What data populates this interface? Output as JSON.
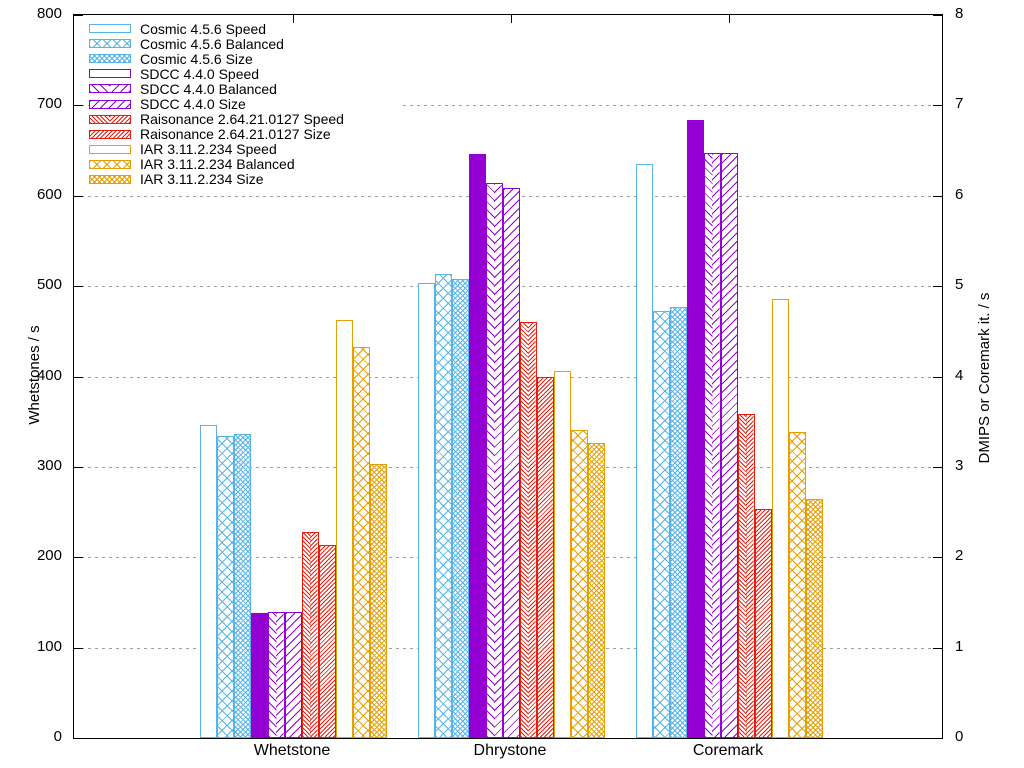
{
  "chart_data": {
    "type": "bar",
    "title": "",
    "categories": [
      "Whetstone",
      "Dhrystone",
      "Coremark"
    ],
    "left_axis": {
      "label": "Whetstones / s",
      "min": 0,
      "max": 800,
      "tick_step": 100,
      "tick_labels": [
        "0",
        "100",
        "200",
        "300",
        "400",
        "500",
        "600",
        "700",
        "800"
      ]
    },
    "right_axis": {
      "label": "DMIPS or Coremark it. / s",
      "min": 0,
      "max": 8,
      "tick_step": 1,
      "tick_labels": [
        "0",
        "1",
        "2",
        "3",
        "4",
        "5",
        "6",
        "7",
        "8"
      ]
    },
    "grid": {
      "on": true,
      "color": "#9e9e9e",
      "style": "dashed"
    },
    "legend_position": "top-left-inside",
    "note": "Bar heights are plotted on a shared scale: Whetstone bars read on the left axis (Whetstones/s); Dhrystone and Coremark bars read on the right axis (DMIPS or Coremark iterations/s) = left-axis value / 100.",
    "series": [
      {
        "name": "Cosmic 4.5.6 Speed",
        "color": "#56B4E9",
        "pattern": "empty",
        "values": [
          346,
          504,
          635
        ]
      },
      {
        "name": "Cosmic 4.5.6 Balanced",
        "color": "#56B4E9",
        "pattern": "cross",
        "values": [
          334,
          513,
          472
        ]
      },
      {
        "name": "Cosmic 4.5.6 Size",
        "color": "#56B4E9",
        "pattern": "cross-dense",
        "values": [
          336,
          508,
          477
        ]
      },
      {
        "name": "SDCC 4.4.0 Speed",
        "color": "#9400D3",
        "pattern": "solid",
        "values": [
          138,
          646,
          684
        ]
      },
      {
        "name": "SDCC 4.4.0 Balanced",
        "color": "#9400D3",
        "pattern": "herringbone",
        "values": [
          139,
          614,
          647
        ]
      },
      {
        "name": "SDCC 4.4.0 Size",
        "color": "#9400D3",
        "pattern": "diagonal",
        "values": [
          139,
          609,
          647
        ]
      },
      {
        "name": "Raisonance 2.64.21.0127 Speed",
        "color": "#E51E10",
        "pattern": "herringbone-dense",
        "values": [
          228,
          460,
          359
        ]
      },
      {
        "name": "Raisonance 2.64.21.0127 Size",
        "color": "#E51E10",
        "pattern": "diagonal-dense",
        "values": [
          214,
          399,
          253
        ]
      },
      {
        "name": "IAR 3.11.2.234 Speed",
        "color": "#E69F00",
        "pattern": "empty",
        "values": [
          462,
          406,
          486
        ]
      },
      {
        "name": "IAR 3.11.2.234 Balanced",
        "color": "#E69F00",
        "pattern": "cross",
        "values": [
          433,
          341,
          339
        ]
      },
      {
        "name": "IAR 3.11.2.234 Size",
        "color": "#E69F00",
        "pattern": "cross-dense",
        "values": [
          303,
          326,
          264
        ]
      }
    ]
  }
}
